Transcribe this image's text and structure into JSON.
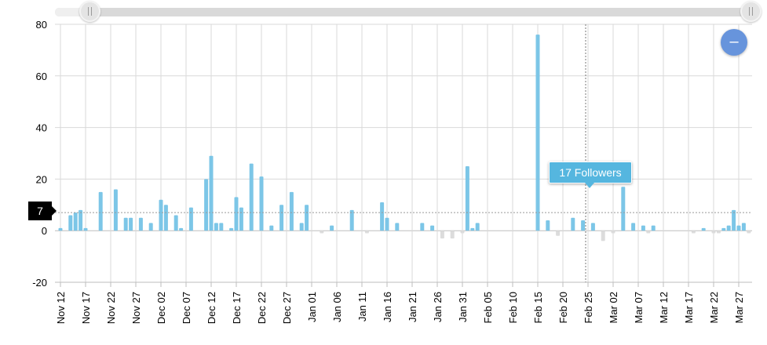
{
  "chart_data": {
    "type": "bar",
    "title": "",
    "xlabel": "",
    "ylabel": "",
    "ylim": [
      -20,
      80
    ],
    "yticks": [
      80,
      60,
      40,
      20,
      0,
      -20
    ],
    "grid": true,
    "x_tick_labels": [
      "Nov 12",
      "Nov 17",
      "Nov 22",
      "Nov 27",
      "Dec 02",
      "Dec 07",
      "Dec 12",
      "Dec 17",
      "Dec 22",
      "Dec 27",
      "Jan 01",
      "Jan 06",
      "Jan 11",
      "Jan 16",
      "Jan 21",
      "Jan 26",
      "Jan 31",
      "Feb 05",
      "Feb 10",
      "Feb 15",
      "Feb 20",
      "Feb 25",
      "Mar 02",
      "Mar 07",
      "Mar 12",
      "Mar 17",
      "Mar 22",
      "Mar 27"
    ],
    "series": [
      {
        "values": [
          1,
          0,
          6,
          7,
          8,
          1,
          0,
          0,
          15,
          0,
          0,
          16,
          0,
          5,
          5,
          0,
          5,
          0,
          3,
          0,
          12,
          10,
          0,
          6,
          1,
          0,
          9,
          0,
          0,
          20,
          29,
          3,
          3,
          0,
          1,
          13,
          9,
          0,
          26,
          0,
          21,
          0,
          2,
          0,
          10,
          0,
          15,
          0,
          3,
          10,
          0,
          0,
          -1,
          0,
          2,
          0,
          0,
          0,
          8,
          0,
          0,
          -1,
          0,
          0,
          11,
          5,
          0,
          3,
          0,
          0,
          0,
          0,
          3,
          0,
          2,
          0,
          -3,
          0,
          -3,
          0,
          -1,
          25,
          1,
          3,
          0,
          0,
          0,
          0,
          0,
          0,
          0,
          0,
          0,
          0,
          0,
          76,
          0,
          4,
          0,
          -2,
          0,
          0,
          5,
          0,
          4,
          0,
          3,
          0,
          -4,
          0,
          -1,
          0,
          17,
          0,
          3,
          0,
          2,
          -1,
          2,
          0,
          0,
          0,
          0,
          0,
          0,
          0,
          -1,
          0,
          1,
          0,
          -1,
          -1,
          1,
          2,
          8,
          2,
          3,
          -1,
          0,
          0,
          0,
          0,
          1,
          1,
          0,
          1,
          1,
          0,
          -1,
          -1
        ]
      }
    ],
    "highlighted_point": {
      "date": "Feb 25",
      "value": 17
    },
    "tooltip_text": "17 Followers",
    "y_cursor_value": "7",
    "colors": {
      "positive": "#7cc6e7",
      "negative": "#dcdcdc",
      "grid": "#d9d9d9",
      "accent": "#6794dc"
    }
  },
  "controls": {
    "zoom_out_symbol": "–"
  }
}
